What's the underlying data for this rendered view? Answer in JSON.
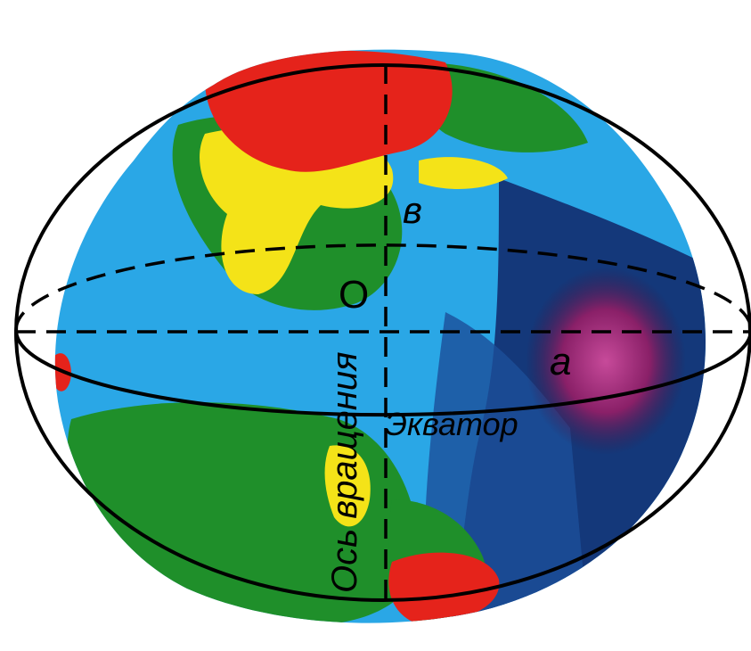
{
  "labels": {
    "semi_minor_axis": "в",
    "center": "O",
    "semi_major_axis": "a",
    "equator": "Экватор",
    "rotation_axis": "Ось вращения"
  },
  "colors": {
    "background": "#ffffff",
    "ocean": "#2aa7e6",
    "deep_ocean": "#14387a",
    "lowland": "#1f8f2a",
    "highland": "#f4e318",
    "peak": "#e5231b",
    "depression": "#7a1f5a",
    "outline": "#000000"
  }
}
